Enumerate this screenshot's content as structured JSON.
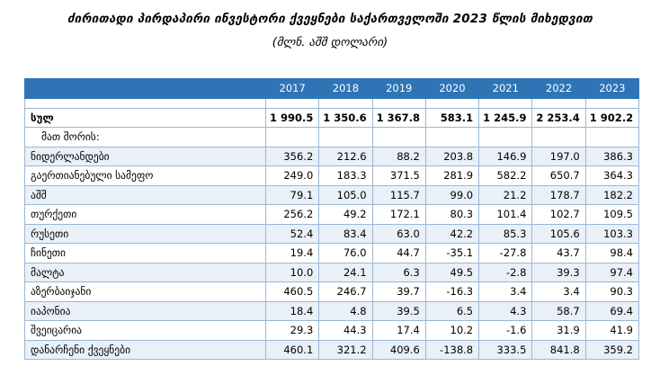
{
  "title": "ძირითადი პირდაპირი ინვესტორი ქვეყნები საქართველოში 2023 წლის მიხედვით",
  "subtitle": "(მლნ. აშშ დოლარი)",
  "years": [
    "2017",
    "2018",
    "2019",
    "2020",
    "2021",
    "2022",
    "2023"
  ],
  "total": {
    "label": "სულ",
    "values": [
      "1 990.5",
      "1 350.6",
      "1 367.8",
      "583.1",
      "1 245.9",
      "2 253.4",
      "1 902.2"
    ]
  },
  "sub_label": "მათ შორის:",
  "rows": [
    {
      "label": "ნიდერლანდები",
      "values": [
        "356.2",
        "212.6",
        "88.2",
        "203.8",
        "146.9",
        "197.0",
        "386.3"
      ]
    },
    {
      "label": "გაერთიანებული სამეფო",
      "values": [
        "249.0",
        "183.3",
        "371.5",
        "281.9",
        "582.2",
        "650.7",
        "364.3"
      ]
    },
    {
      "label": "აშშ",
      "values": [
        "79.1",
        "105.0",
        "115.7",
        "99.0",
        "21.2",
        "178.7",
        "182.2"
      ]
    },
    {
      "label": "თურქეთი",
      "values": [
        "256.2",
        "49.2",
        "172.1",
        "80.3",
        "101.4",
        "102.7",
        "109.5"
      ]
    },
    {
      "label": "რუსეთი",
      "values": [
        "52.4",
        "83.4",
        "63.0",
        "42.2",
        "85.3",
        "105.6",
        "103.3"
      ]
    },
    {
      "label": "ჩინეთი",
      "values": [
        "19.4",
        "76.0",
        "44.7",
        "-35.1",
        "-27.8",
        "43.7",
        "98.4"
      ]
    },
    {
      "label": "მალტა",
      "values": [
        "10.0",
        "24.1",
        "6.3",
        "49.5",
        "-2.8",
        "39.3",
        "97.4"
      ]
    },
    {
      "label": "აზერბაიჯანი",
      "values": [
        "460.5",
        "246.7",
        "39.7",
        "-16.3",
        "3.4",
        "3.4",
        "90.3"
      ]
    },
    {
      "label": "იაპონია",
      "values": [
        "18.4",
        "4.8",
        "39.5",
        "6.5",
        "4.3",
        "58.7",
        "69.4"
      ]
    },
    {
      "label": "შვეიცარია",
      "values": [
        "29.3",
        "44.3",
        "17.4",
        "10.2",
        "-1.6",
        "31.9",
        "41.9"
      ]
    },
    {
      "label": "დანარჩენი ქვეყნები",
      "values": [
        "460.1",
        "321.2",
        "409.6",
        "-138.8",
        "333.5",
        "841.8",
        "359.2"
      ]
    }
  ]
}
